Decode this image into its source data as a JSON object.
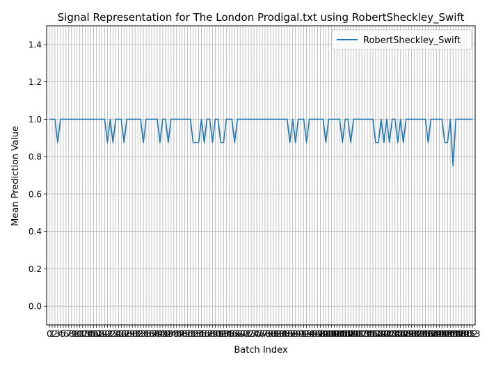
{
  "chart_data": {
    "type": "line",
    "title": "Signal Representation for The London Prodigal.txt using RobertSheckley_Swift",
    "xlabel": "Batch Index",
    "ylabel": "Mean Prediction Value",
    "xlim": [
      -1,
      154
    ],
    "ylim": [
      -0.1,
      1.5
    ],
    "y_ticks": [
      0.0,
      0.2,
      0.4,
      0.6,
      0.8,
      1.0,
      1.2,
      1.4
    ],
    "x_tick_count": 154,
    "grid": true,
    "legend": {
      "placement": "top-right"
    },
    "series": [
      {
        "name": "RobertSheckley_Swift",
        "color": "#1f77b4",
        "values": [
          1.0,
          1.0,
          1.0,
          0.875,
          1.0,
          1.0,
          1.0,
          1.0,
          1.0,
          1.0,
          1.0,
          1.0,
          1.0,
          1.0,
          1.0,
          1.0,
          1.0,
          1.0,
          1.0,
          1.0,
          1.0,
          0.875,
          1.0,
          0.875,
          1.0,
          1.0,
          1.0,
          0.875,
          1.0,
          1.0,
          1.0,
          1.0,
          1.0,
          1.0,
          0.875,
          1.0,
          1.0,
          1.0,
          1.0,
          1.0,
          0.875,
          1.0,
          1.0,
          0.875,
          1.0,
          1.0,
          1.0,
          1.0,
          1.0,
          1.0,
          1.0,
          1.0,
          0.875,
          0.875,
          0.875,
          1.0,
          0.875,
          1.0,
          1.0,
          0.875,
          1.0,
          1.0,
          0.875,
          0.875,
          1.0,
          1.0,
          1.0,
          0.875,
          1.0,
          1.0,
          1.0,
          1.0,
          1.0,
          1.0,
          1.0,
          1.0,
          1.0,
          1.0,
          1.0,
          1.0,
          1.0,
          1.0,
          1.0,
          1.0,
          1.0,
          1.0,
          1.0,
          0.875,
          1.0,
          0.875,
          1.0,
          1.0,
          1.0,
          0.875,
          1.0,
          1.0,
          1.0,
          1.0,
          1.0,
          1.0,
          0.875,
          1.0,
          1.0,
          1.0,
          1.0,
          1.0,
          0.875,
          1.0,
          1.0,
          0.875,
          1.0,
          1.0,
          1.0,
          1.0,
          1.0,
          1.0,
          1.0,
          1.0,
          0.875,
          0.875,
          1.0,
          0.875,
          1.0,
          0.875,
          1.0,
          1.0,
          0.875,
          1.0,
          0.875,
          1.0,
          1.0,
          1.0,
          1.0,
          1.0,
          1.0,
          1.0,
          1.0,
          0.875,
          1.0,
          1.0,
          1.0,
          1.0,
          1.0,
          0.875,
          0.875,
          1.0,
          0.75,
          1.0,
          1.0,
          1.0,
          1.0,
          1.0,
          1.0,
          1.0
        ]
      }
    ]
  }
}
